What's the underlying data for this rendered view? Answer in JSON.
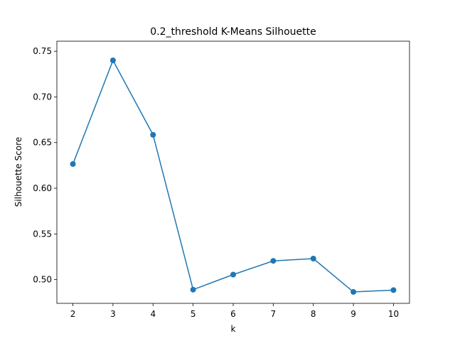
{
  "chart_data": {
    "type": "line",
    "title": "0.2_threshold K-Means Silhouette",
    "xlabel": "k",
    "ylabel": "Silhouette Score",
    "x": [
      2,
      3,
      4,
      5,
      6,
      7,
      8,
      9,
      10
    ],
    "series": [
      {
        "values": [
          0.6265,
          0.74,
          0.6585,
          0.489,
          0.5055,
          0.5205,
          0.523,
          0.4865,
          0.4885
        ]
      }
    ],
    "xlim": [
      1.6,
      10.4
    ],
    "ylim": [
      0.474,
      0.761
    ],
    "x_ticks": [
      "2",
      "3",
      "4",
      "5",
      "6",
      "7",
      "8",
      "9",
      "10"
    ],
    "y_ticks": [
      "0.50",
      "0.55",
      "0.60",
      "0.65",
      "0.70",
      "0.75"
    ],
    "grid": false,
    "color": "#1f77b4"
  }
}
